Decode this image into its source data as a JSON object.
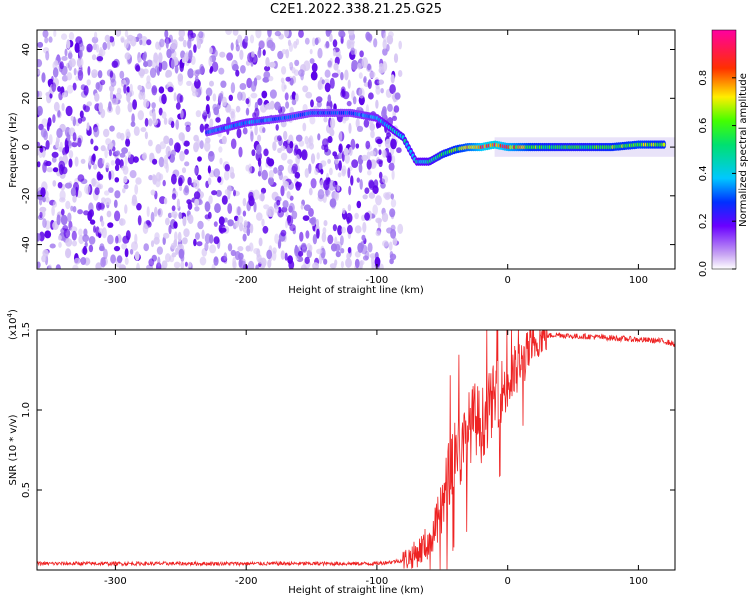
{
  "figure_title": "C2E1.2022.338.21.25.G25",
  "colors": {
    "snr_line": "#ee2222",
    "axis": "#000000",
    "spectrogram_light": "#d8c8f4",
    "spectrogram_dark": "#5a00e8"
  },
  "colorbar": {
    "label": "Normalized spectral amplitude",
    "ticks": [
      "0.0",
      "0.2",
      "0.4",
      "0.6",
      "0.8"
    ],
    "tick_values": [
      0.0,
      0.2,
      0.4,
      0.6,
      0.8
    ],
    "range": [
      0,
      1
    ],
    "colormap": "rainbow (white-violet-blue-cyan-green-yellow-red-magenta)"
  },
  "chart_data": [
    {
      "type": "heatmap",
      "title": "C2E1.2022.338.21.25.G25",
      "xlabel": "Height of straight line (km)",
      "ylabel": "Frequency (Hz)",
      "xlim": [
        -360,
        128
      ],
      "ylim": [
        -50,
        48
      ],
      "x_ticks": [
        -300,
        -200,
        -100,
        0,
        100
      ],
      "x_tick_labels": [
        "-300",
        "-200",
        "-100",
        "0",
        "100"
      ],
      "y_ticks": [
        -40,
        -20,
        0,
        20,
        40
      ],
      "y_tick_labels": [
        "-40",
        "-20",
        "0",
        "20",
        "40"
      ],
      "description_of_signal": "Diffuse violet noise for heights below about -85 km; a dominant tone near 0 Hz appears from about -80 km upward with normalized amplitude rising to 0.8-1.0 above 0 km",
      "ridge": {
        "x": [
          -230,
          -215,
          -200,
          -170,
          -150,
          -120,
          -100,
          -90,
          -80,
          -70,
          -60,
          -50,
          -40,
          -30,
          -20,
          -10,
          0,
          20,
          40,
          60,
          80,
          100,
          120
        ],
        "y": [
          6,
          8,
          10,
          12,
          14,
          14,
          12,
          8,
          4,
          -6,
          -6,
          -3,
          -1,
          0,
          0,
          1,
          0,
          0,
          0,
          0,
          0,
          1,
          1
        ],
        "amplitude": [
          0.3,
          0.35,
          0.35,
          0.3,
          0.3,
          0.3,
          0.35,
          0.4,
          0.45,
          0.4,
          0.45,
          0.55,
          0.6,
          0.7,
          0.85,
          0.9,
          0.8,
          0.6,
          0.55,
          0.55,
          0.6,
          0.65,
          0.6
        ]
      }
    },
    {
      "type": "line",
      "xlabel": "Height of straight line (km)",
      "ylabel": "SNR (10 * v/v)",
      "y_multiplier": "(x10",
      "y_multiplier_exp": "4",
      "y_multiplier_close": ")",
      "xlim": [
        -360,
        128
      ],
      "ylim": [
        0,
        1.5
      ],
      "x_ticks": [
        -300,
        -200,
        -100,
        0,
        100
      ],
      "x_tick_labels": [
        "-300",
        "-200",
        "-100",
        "0",
        "100"
      ],
      "y_ticks": [
        0.5,
        1.0,
        1.5
      ],
      "y_tick_labels": [
        "0.5",
        "1.0",
        "1.5"
      ],
      "series": [
        {
          "x": [
            -360,
            -300,
            -200,
            -150,
            -100,
            -90,
            -80,
            -70,
            -60,
            -55,
            -50,
            -45,
            -40,
            -35,
            -30,
            -25,
            -20,
            -15,
            -10,
            -5,
            0,
            5,
            10,
            15,
            20,
            25,
            30,
            35,
            40,
            50,
            60,
            80,
            100,
            120,
            128
          ],
          "y": [
            0.04,
            0.04,
            0.04,
            0.04,
            0.04,
            0.05,
            0.06,
            0.1,
            0.18,
            0.26,
            0.38,
            0.6,
            0.78,
            0.72,
            0.88,
            0.95,
            0.9,
            1.0,
            1.08,
            1.12,
            1.15,
            1.22,
            1.28,
            1.35,
            1.41,
            1.45,
            1.46,
            1.47,
            1.47,
            1.46,
            1.46,
            1.45,
            1.44,
            1.43,
            1.41
          ]
        }
      ]
    }
  ]
}
